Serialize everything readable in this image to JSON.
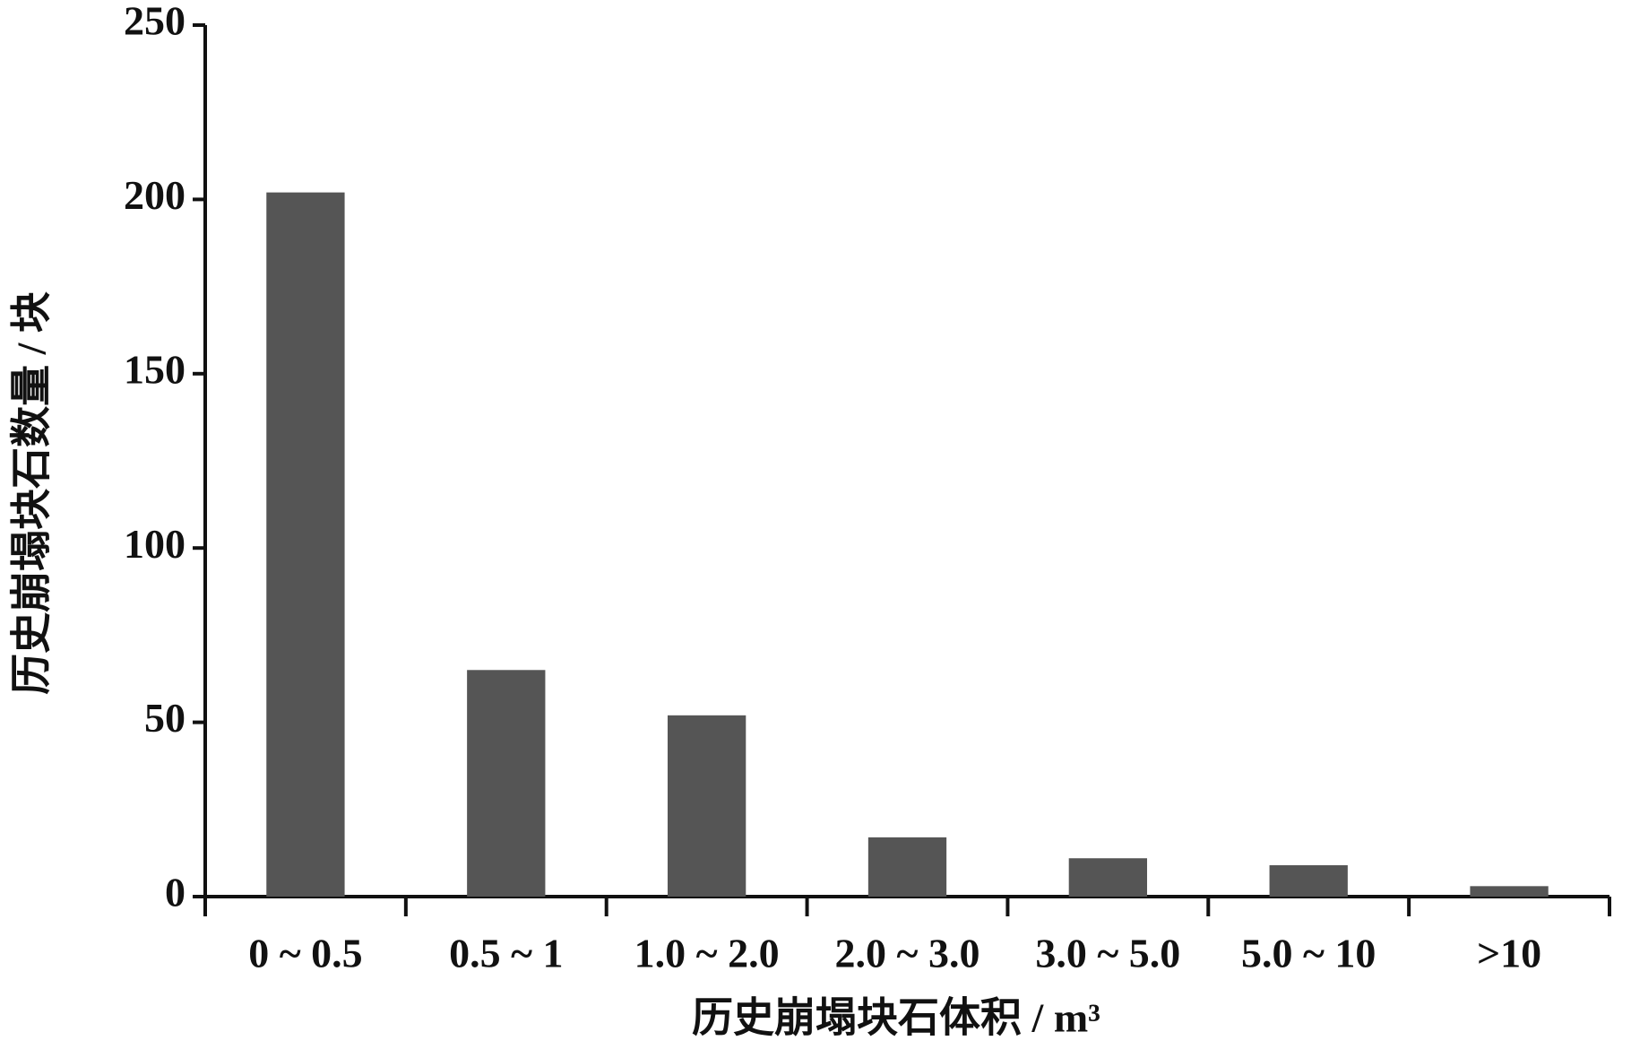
{
  "chart_data": {
    "type": "bar",
    "x_label": "历史崩塌块石体积 / m³",
    "y_label": "历史崩塌块石数量 / 块",
    "categories": [
      "0 ~ 0.5",
      "0.5 ~ 1",
      "1.0 ~ 2.0",
      "2.0 ~ 3.0",
      "3.0 ~ 5.0",
      "5.0 ~ 10",
      ">10"
    ],
    "values": [
      202,
      65,
      52,
      17,
      11,
      9,
      3
    ],
    "color": "#555555",
    "ylim": [
      0,
      250
    ],
    "yticks": [
      0,
      50,
      100,
      150,
      200,
      250
    ],
    "grid": false
  }
}
